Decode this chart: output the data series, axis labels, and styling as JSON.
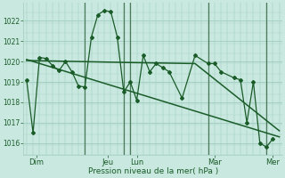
{
  "bg_color": "#c8e8e0",
  "grid_color": "#a0ccbf",
  "line_color": "#1a5c28",
  "sep_color": "#4a7a5a",
  "title": "Pression niveau de la mer( hPa )",
  "ylim": [
    1015.4,
    1022.9
  ],
  "yticks": [
    1016,
    1017,
    1018,
    1019,
    1020,
    1021,
    1022
  ],
  "xlim": [
    -0.5,
    39.5
  ],
  "vlines": [
    9,
    15,
    16,
    28,
    37
  ],
  "day_ticks_pos": [
    1.5,
    12.5,
    17,
    29,
    38
  ],
  "day_labels": [
    "Dim",
    "Jeu",
    "Lun",
    "Mar",
    "Mer"
  ],
  "s1x": [
    0,
    1,
    2,
    3,
    4,
    5,
    6,
    7,
    8,
    9,
    10,
    11,
    12,
    13,
    14,
    15,
    16,
    17,
    18,
    19,
    20,
    21,
    22,
    24,
    26,
    28,
    29,
    30,
    32,
    33,
    34,
    35,
    36,
    37,
    38
  ],
  "s1y": [
    1019.1,
    1016.5,
    1020.2,
    1020.15,
    1019.8,
    1019.55,
    1020.0,
    1019.5,
    1018.8,
    1018.75,
    1021.2,
    1022.3,
    1022.5,
    1022.45,
    1021.2,
    1018.5,
    1019.0,
    1018.1,
    1020.3,
    1019.5,
    1019.9,
    1019.7,
    1019.5,
    1018.2,
    1020.3,
    1019.9,
    1019.9,
    1019.5,
    1019.2,
    1019.1,
    1017.0,
    1019.0,
    1016.0,
    1015.8,
    1016.2
  ],
  "s2x": [
    0,
    39
  ],
  "s2y": [
    1020.1,
    1016.3
  ],
  "s3x": [
    0,
    16,
    26,
    39
  ],
  "s3y": [
    1020.05,
    1019.95,
    1019.9,
    1016.6
  ],
  "marker": "D",
  "marker_size": 2.0
}
